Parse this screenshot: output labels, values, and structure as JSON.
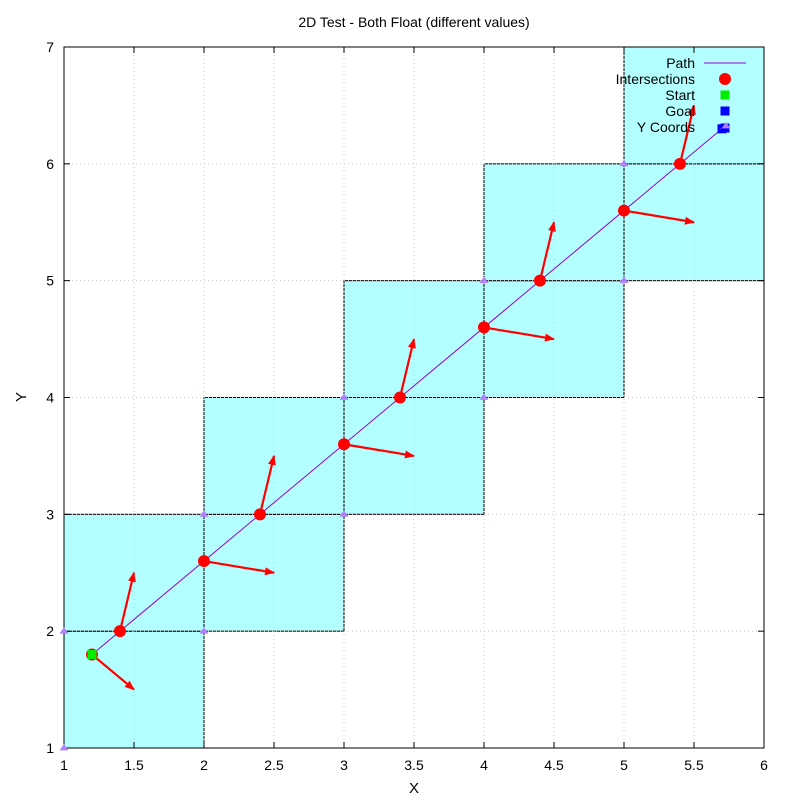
{
  "chart_data": {
    "type": "scatter",
    "title": "2D Test - Both Float (different values)",
    "xlabel": "X",
    "ylabel": "Y",
    "xlim": [
      1,
      6
    ],
    "ylim": [
      1,
      7
    ],
    "x_ticks": [
      "1",
      "1.5",
      "2",
      "2.5",
      "3",
      "3.5",
      "4",
      "4.5",
      "5",
      "5.5",
      "6"
    ],
    "y_ticks": [
      "1",
      "2",
      "3",
      "4",
      "5",
      "6",
      "7"
    ],
    "grid": true,
    "legend_position": "top-right",
    "cells": [
      {
        "x": 1,
        "y": 1
      },
      {
        "x": 1,
        "y": 2
      },
      {
        "x": 2,
        "y": 2
      },
      {
        "x": 2,
        "y": 3
      },
      {
        "x": 3,
        "y": 3
      },
      {
        "x": 3,
        "y": 4
      },
      {
        "x": 4,
        "y": 4
      },
      {
        "x": 4,
        "y": 5
      },
      {
        "x": 5,
        "y": 5
      },
      {
        "x": 5,
        "y": 6
      }
    ],
    "path": {
      "x": [
        1.2,
        5.7
      ],
      "y": [
        1.8,
        6.3
      ]
    },
    "intersections": {
      "x": [
        1.4,
        2.0,
        2.4,
        3.0,
        3.4,
        4.0,
        4.4,
        5.0,
        5.4
      ],
      "y": [
        2.0,
        2.6,
        3.0,
        3.6,
        4.0,
        4.6,
        5.0,
        5.6,
        6.0
      ]
    },
    "vectors": [
      {
        "x": 1.2,
        "y": 1.8,
        "dx": 0.3,
        "dy": -0.3
      },
      {
        "x": 1.4,
        "y": 2.0,
        "dx": 0.1,
        "dy": 0.5
      },
      {
        "x": 2.0,
        "y": 2.6,
        "dx": 0.5,
        "dy": -0.1
      },
      {
        "x": 2.4,
        "y": 3.0,
        "dx": 0.1,
        "dy": 0.5
      },
      {
        "x": 3.0,
        "y": 3.6,
        "dx": 0.5,
        "dy": -0.1
      },
      {
        "x": 3.4,
        "y": 4.0,
        "dx": 0.1,
        "dy": 0.5
      },
      {
        "x": 4.0,
        "y": 4.6,
        "dx": 0.5,
        "dy": -0.1
      },
      {
        "x": 4.4,
        "y": 5.0,
        "dx": 0.1,
        "dy": 0.5
      },
      {
        "x": 5.0,
        "y": 5.6,
        "dx": 0.5,
        "dy": -0.1
      },
      {
        "x": 5.4,
        "y": 6.0,
        "dx": 0.1,
        "dy": 0.5
      }
    ],
    "start": {
      "x": 1.2,
      "y": 1.8
    },
    "goal": {
      "x": 5.7,
      "y": 6.3
    },
    "y_coords": {
      "x": [
        1,
        1,
        2,
        2,
        3,
        3,
        4,
        4,
        5,
        5,
        5.7
      ],
      "y": [
        1,
        2,
        2,
        3,
        3,
        4,
        4,
        5,
        5,
        6,
        6.3
      ]
    },
    "legend": [
      {
        "label": "Path",
        "marker": "line",
        "color": "#9400d3"
      },
      {
        "label": "Intersections",
        "marker": "circle",
        "color": "#ff0000"
      },
      {
        "label": "Start",
        "marker": "square",
        "color": "#00ee00"
      },
      {
        "label": "Goal",
        "marker": "square",
        "color": "#0000ff"
      },
      {
        "label": "Y Coords",
        "marker": "triangle",
        "color": "#b080ff"
      }
    ],
    "colors": {
      "cell_fill": "#b3ffff",
      "path": "#9400d3",
      "intersection": "#ff0000",
      "vector": "#ff0000",
      "start": "#00ee00",
      "goal": "#0000ff",
      "y_coords": "#b080ff",
      "grid": "#c8c8c8"
    }
  }
}
